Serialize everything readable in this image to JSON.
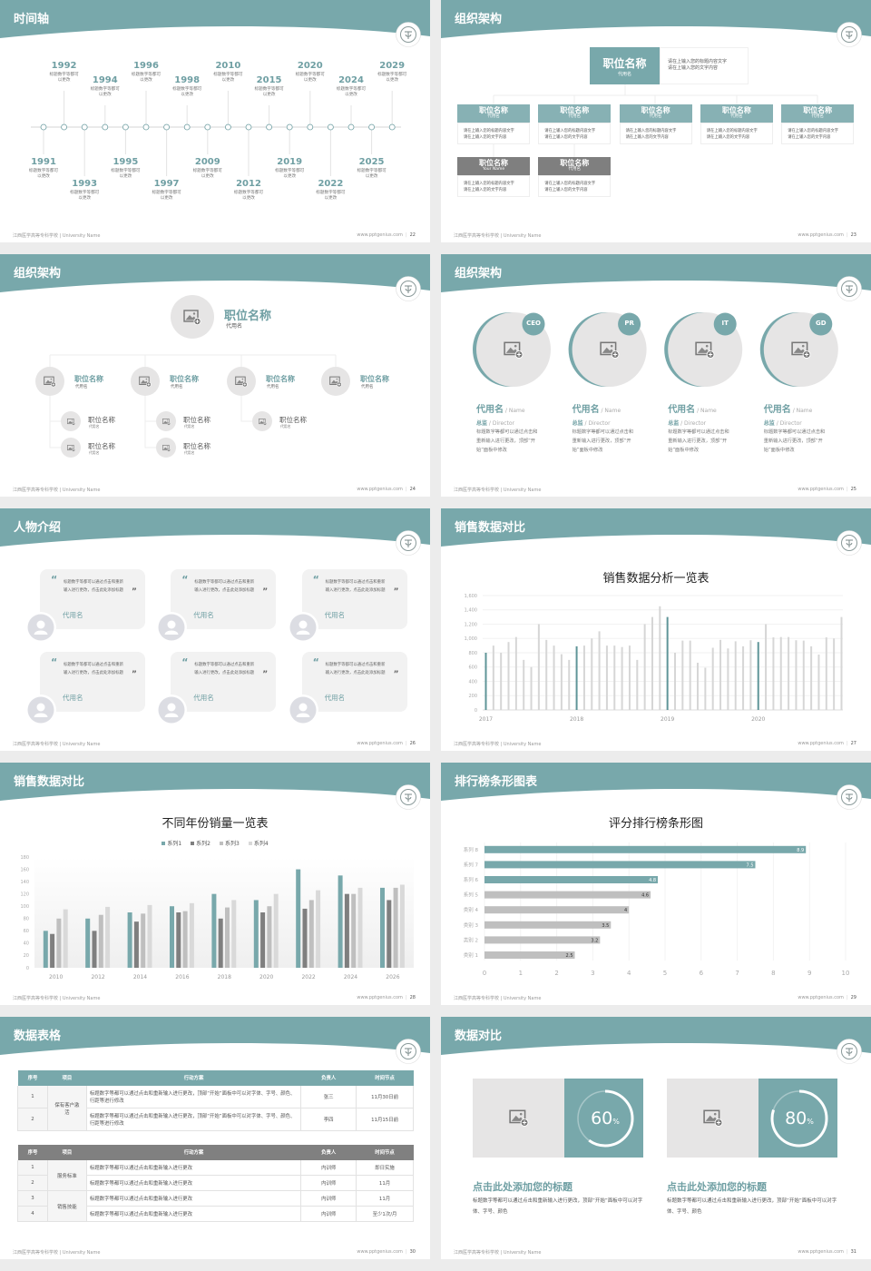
{
  "footer": {
    "school": "江西医学高等专科学校 | University Name",
    "url": "www.pptgenius.com"
  },
  "colors": {
    "accent": "#78a8ab",
    "accent_text": "#6f9fa3",
    "dark_gray": "#7f7f7f",
    "light_gray": "#d9d9d9",
    "page_bg": "#ececec"
  },
  "timeline": {
    "title": "时间轴",
    "page": "22",
    "items": [
      {
        "year": "1991",
        "desc": "标题数字等都可以更改"
      },
      {
        "year": "1992",
        "desc": "标题数字等都可以更改"
      },
      {
        "year": "1993",
        "desc": "标题数字等都可以更改"
      },
      {
        "year": "1994",
        "desc": "标题数字等都可以更改"
      },
      {
        "year": "1995",
        "desc": "标题数字等都可以更改"
      },
      {
        "year": "1996",
        "desc": "标题数字等都可以更改"
      },
      {
        "year": "1997",
        "desc": "标题数字等都可以更改"
      },
      {
        "year": "1998",
        "desc": "标题数字等都可以更改"
      },
      {
        "year": "2009",
        "desc": "标题数字等都可以更改"
      },
      {
        "year": "2010",
        "desc": "标题数字等都可以更改"
      },
      {
        "year": "2012",
        "desc": "标题数字等都可以更改"
      },
      {
        "year": "2015",
        "desc": "标题数字等都可以更改"
      },
      {
        "year": "2019",
        "desc": "标题数字等都可以更改"
      },
      {
        "year": "2020",
        "desc": "标题数字等都可以更改"
      },
      {
        "year": "2022",
        "desc": "标题数字等都可以更改"
      },
      {
        "year": "2024",
        "desc": "标题数字等都可以更改"
      },
      {
        "year": "2025",
        "desc": "标题数字等都可以更改"
      },
      {
        "year": "2029",
        "desc": "标题数字等都可以更改"
      }
    ]
  },
  "org_boxes": {
    "title": "组织架构",
    "page": "23",
    "top": {
      "title": "职位名称",
      "sub": "代用名",
      "desc": [
        "请在上输入您的标题内容文字",
        "请在上输入您的文字内容"
      ]
    },
    "row1": [
      {
        "title": "职位名称",
        "sub": "代用名",
        "desc": [
          "请在上输入您的标题内容文字",
          "请在上输入您的文字内容"
        ]
      },
      {
        "title": "职位名称",
        "sub": "代用名",
        "desc": [
          "请在上输入您的标题内容文字",
          "请在上输入您的文字内容"
        ]
      },
      {
        "title": "职位名称",
        "sub": "代用名",
        "desc": [
          "请在上输入您的标题内容文字",
          "请在上输入您的文字内容"
        ]
      },
      {
        "title": "职位名称",
        "sub": "代用名",
        "desc": [
          "请在上输入您的标题内容文字",
          "请在上输入您的文字内容"
        ]
      },
      {
        "title": "职位名称",
        "sub": "代用名",
        "desc": [
          "请在上输入您的标题内容文字",
          "请在上输入您的文字内容"
        ]
      }
    ],
    "row2": [
      {
        "title": "职位名称",
        "sub": "Your Name",
        "desc": [
          "请在上输入您的标题内容文字",
          "请在上输入您的文字内容"
        ]
      },
      {
        "title": "职位名称",
        "sub": "代用名",
        "desc": [
          "请在上输入您的标题内容文字",
          "请在上输入您的文字内容"
        ]
      }
    ]
  },
  "org_tree": {
    "title": "组织架构",
    "page": "24",
    "top": {
      "title": "职位名称",
      "sub": "代用名"
    },
    "mid": [
      {
        "title": "职位名称",
        "sub": "代用名"
      },
      {
        "title": "职位名称",
        "sub": "代用名"
      },
      {
        "title": "职位名称",
        "sub": "代用名"
      },
      {
        "title": "职位名称",
        "sub": "代用名"
      }
    ],
    "leaves": [
      {
        "parent": 0,
        "title": "职位名称",
        "sub": "代用名"
      },
      {
        "parent": 0,
        "title": "职位名称",
        "sub": "代用名"
      },
      {
        "parent": 1,
        "title": "职位名称",
        "sub": "代用名"
      },
      {
        "parent": 1,
        "title": "职位名称",
        "sub": "代用名"
      },
      {
        "parent": 2,
        "title": "职位名称",
        "sub": "代用名"
      }
    ]
  },
  "team": {
    "title": "组织架构",
    "page": "25",
    "members": [
      {
        "badge": "CEO",
        "name": "代用名",
        "name_en": " / Name",
        "role": "总监",
        "role_en": " /  Director",
        "desc": "标题数字等都可以通过点击和重新输入进行更改，顶部“开始”面板中修改"
      },
      {
        "badge": "PR",
        "name": "代用名",
        "name_en": " / Name",
        "role": "总监",
        "role_en": " /  Director",
        "desc": "标题数字等都可以通过点击和重新输入进行更改，顶部“开始”面板中修改"
      },
      {
        "badge": "IT",
        "name": "代用名",
        "name_en": " / Name",
        "role": "总监",
        "role_en": " /  Director",
        "desc": "标题数字等都可以通过点击和重新输入进行更改，顶部“开始”面板中修改"
      },
      {
        "badge": "GD",
        "name": "代用名",
        "name_en": " / Name",
        "role": "总监",
        "role_en": " /  Director",
        "desc": "标题数字等都可以通过点击和重新输入进行更改，顶部“开始”面板中修改"
      }
    ]
  },
  "people": {
    "title": "人物介绍",
    "page": "26",
    "cards": [
      {
        "quote": "标题数字等都可以通过点击和重新输入进行更改，点击此处添加标题",
        "name": "代用名"
      },
      {
        "quote": "标题数字等都可以通过点击和重新输入进行更改，点击此处添加标题",
        "name": "代用名"
      },
      {
        "quote": "标题数字等都可以通过点击和重新输入进行更改，点击此处添加标题",
        "name": "代用名"
      },
      {
        "quote": "标题数字等都可以通过点击和重新输入进行更改，点击此处添加标题",
        "name": "代用名"
      },
      {
        "quote": "标题数字等都可以通过点击和重新输入进行更改，点击此处添加标题",
        "name": "代用名"
      },
      {
        "quote": "标题数字等都可以通过点击和重新输入进行更改，点击此处添加标题",
        "name": "代用名"
      }
    ]
  },
  "sales_monthly": {
    "title": "销售数据对比",
    "page": "27"
  },
  "sales_yearly": {
    "title": "销售数据对比",
    "page": "28"
  },
  "ranking": {
    "title": "排行榜条形图表",
    "page": "29"
  },
  "table": {
    "title": "数据表格",
    "page": "30",
    "headers": [
      "序号",
      "项目",
      "行动方案",
      "负责人",
      "时间节点"
    ],
    "table1": {
      "groups": [
        {
          "label": "保有客户激活",
          "rows": [
            {
              "no": "1",
              "plan": "标题数字等都可以通过点击和重新输入进行更改，顶部“开始”面板中可以对字体、字号、颜色、行距等进行修改",
              "owner": "张三",
              "time": "11月30日前"
            },
            {
              "no": "2",
              "plan": "标题数字等都可以通过点击和重新输入进行更改，顶部“开始”面板中可以对字体、字号、颜色、行距等进行修改",
              "owner": "李四",
              "time": "11月15日前"
            }
          ]
        }
      ]
    },
    "table2": {
      "groups": [
        {
          "label": "服务标准",
          "rows": [
            {
              "no": "1",
              "plan": "标题数字等都可以通过点击和重新输入进行更改",
              "owner": "内训师",
              "time": "即日实施"
            },
            {
              "no": "2",
              "plan": "标题数字等都可以通过点击和重新输入进行更改",
              "owner": "内训师",
              "time": "11月"
            }
          ]
        },
        {
          "label": "销售技能",
          "rows": [
            {
              "no": "3",
              "plan": "标题数字等都可以通过点击和重新输入进行更改",
              "owner": "内训师",
              "time": "11月"
            },
            {
              "no": "4",
              "plan": "标题数字等都可以通过点击和重新输入进行更改",
              "owner": "内训师",
              "time": "至少1次/月"
            }
          ]
        }
      ]
    }
  },
  "compare": {
    "title": "数据对比",
    "page": "31",
    "items": [
      {
        "percent": 60,
        "value": "60",
        "unit": "%",
        "heading": "点击此处添加您的标题",
        "desc": "标题数字等都可以通过点击和重新输入进行更改，顶部“开始”面板中可以对字体、字号、颜色"
      },
      {
        "percent": 80,
        "value": "80",
        "unit": "%",
        "heading": "点击此处添加您的标题",
        "desc": "标题数字等都可以通过点击和重新输入进行更改，顶部“开始”面板中可以对字体、字号、颜色"
      }
    ]
  },
  "chart_data": [
    {
      "type": "bar",
      "title": "销售数据分析一览表",
      "x_labels": [
        "2017",
        "2018",
        "2019",
        "2020"
      ],
      "yticks": [
        "0",
        "200",
        "400",
        "600",
        "800",
        "1,000",
        "1,200",
        "1,400",
        "1,600"
      ],
      "ylim": [
        0,
        1600
      ],
      "values": [
        800,
        900,
        800,
        950,
        1020,
        700,
        600,
        1200,
        980,
        900,
        780,
        700,
        890,
        900,
        1000,
        1100,
        900,
        900,
        880,
        900,
        700,
        1200,
        1300,
        1450,
        1300,
        800,
        970,
        970,
        660,
        590,
        870,
        980,
        860,
        960,
        890,
        975,
        950,
        1200,
        1015,
        1020,
        1020,
        975,
        970,
        890,
        775,
        1015,
        1000,
        1300
      ],
      "highlight_indices": [
        0,
        12,
        24,
        36
      ]
    },
    {
      "type": "bar",
      "title": "不同年份销量一览表",
      "categories": [
        "2010",
        "2012",
        "2014",
        "2016",
        "2018",
        "2020",
        "2022",
        "2024",
        "2026"
      ],
      "ylim": [
        0,
        180
      ],
      "yticks": [
        "0",
        "20",
        "40",
        "60",
        "80",
        "100",
        "120",
        "140",
        "160",
        "180"
      ],
      "legend": "top",
      "series": [
        {
          "name": "系列1",
          "color": "#78a8ab",
          "values": [
            60,
            80,
            90,
            100,
            120,
            110,
            160,
            150,
            130
          ]
        },
        {
          "name": "系列2",
          "color": "#7f7f7f",
          "values": [
            55,
            60,
            75,
            90,
            80,
            90,
            96,
            120,
            110
          ]
        },
        {
          "name": "系列3",
          "color": "#bfbfbf",
          "values": [
            80,
            86,
            88,
            92,
            98,
            100,
            110,
            120,
            130
          ]
        },
        {
          "name": "系列4",
          "color": "#d9d9d9",
          "values": [
            95,
            99,
            102,
            105,
            110,
            120,
            126,
            130,
            135
          ]
        }
      ]
    },
    {
      "type": "bar",
      "orientation": "horizontal",
      "title": "评分排行榜条形图",
      "categories": [
        "类别 1",
        "类别 2",
        "类别 3",
        "类别 4",
        "系列 5",
        "系列 6",
        "系列 7",
        "系列 8"
      ],
      "values": [
        2.5,
        3.2,
        3.5,
        4,
        4.6,
        4.8,
        7.5,
        8.9
      ],
      "labels": [
        "2.5",
        "3.2",
        "3.5",
        "4",
        "4.6",
        "4.8",
        "7.5",
        "8.9"
      ],
      "xlim": [
        0,
        10
      ],
      "xticks": [
        "0",
        "1",
        "2",
        "3",
        "4",
        "5",
        "6",
        "7",
        "8",
        "9",
        "10"
      ],
      "highlight_indices": [
        5,
        6,
        7
      ]
    }
  ]
}
